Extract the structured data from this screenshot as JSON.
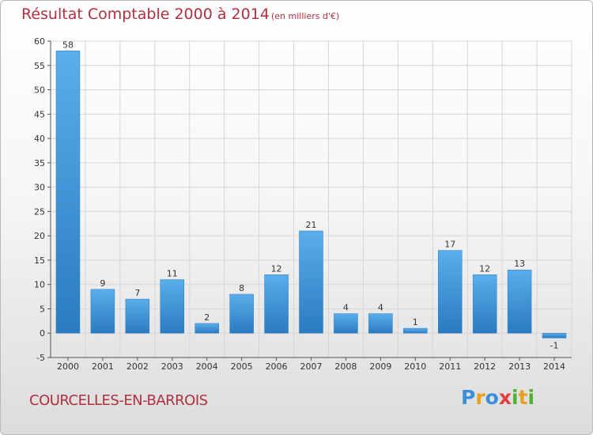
{
  "header": {
    "title": "Résultat Comptable 2000 à 2014",
    "subtitle": "(en milliers d'€)"
  },
  "footer": {
    "commune": "COURCELLES-EN-BARROIS",
    "brand": "Proxiti"
  },
  "colors": {
    "title": "#b03040",
    "bar_light": "#5aaeea",
    "bar_dark": "#2a7bc0",
    "grid": "#d6d6d6",
    "brand_letters": [
      "#3a8fd8",
      "#e8a020",
      "#3a8fd8",
      "#e04040",
      "#50b030",
      "#e8a020",
      "#50b030"
    ]
  },
  "chart_data": {
    "type": "bar",
    "title": "Résultat Comptable 2000 à 2014",
    "subtitle": "(en milliers d'€)",
    "categories": [
      "2000",
      "2001",
      "2002",
      "2003",
      "2004",
      "2005",
      "2006",
      "2007",
      "2008",
      "2009",
      "2010",
      "2011",
      "2012",
      "2013",
      "2014"
    ],
    "values": [
      58,
      9,
      7,
      11,
      2,
      8,
      12,
      21,
      4,
      4,
      1,
      17,
      12,
      13,
      -1
    ],
    "ylim": [
      -5,
      60
    ],
    "yticks": [
      -5,
      0,
      5,
      10,
      15,
      20,
      25,
      30,
      35,
      40,
      45,
      50,
      55,
      60
    ],
    "grid": true,
    "xlabel": "",
    "ylabel": ""
  }
}
